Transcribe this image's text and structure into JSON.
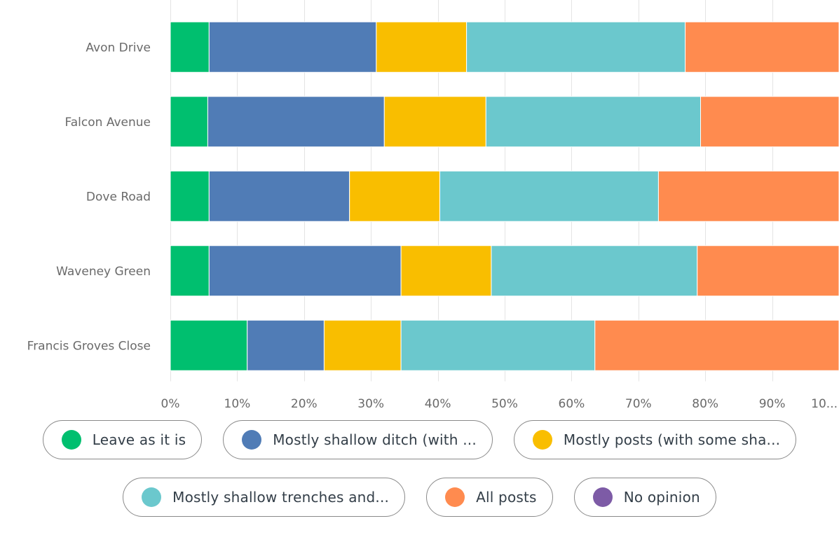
{
  "chart_data": {
    "type": "bar",
    "orientation": "horizontal",
    "stacked": true,
    "categories": [
      "Avon Drive",
      "Falcon Avenue",
      "Dove Road",
      "Waveney Green",
      "Francis Groves Close"
    ],
    "series": [
      {
        "name": "Leave as it is",
        "color": "#00bf6f",
        "values": [
          5.8,
          5.6,
          5.8,
          5.8,
          11.5
        ]
      },
      {
        "name": "Mostly shallow ditch (with ...",
        "color": "#507cb6",
        "values": [
          25.0,
          26.4,
          21.0,
          28.7,
          11.5
        ]
      },
      {
        "name": "Mostly posts (with some sha...",
        "color": "#f9be00",
        "values": [
          13.5,
          15.2,
          13.5,
          13.5,
          11.5
        ]
      },
      {
        "name": "Mostly shallow trenches and...",
        "color": "#6bc8cd",
        "values": [
          32.7,
          32.1,
          32.7,
          30.8,
          29.0
        ]
      },
      {
        "name": "All posts",
        "color": "#ff8b4f",
        "values": [
          23.0,
          20.7,
          27.0,
          21.2,
          36.5
        ]
      },
      {
        "name": "No opinion",
        "color": "#7d5ba6",
        "values": [
          0,
          0,
          0,
          0,
          0
        ]
      }
    ],
    "xlim": [
      0,
      100
    ],
    "xticks": [
      "0%",
      "10%",
      "20%",
      "30%",
      "40%",
      "50%",
      "60%",
      "70%",
      "80%",
      "90%",
      "10..."
    ],
    "grid": true,
    "legend_position": "bottom"
  },
  "legend": {
    "rows": [
      [
        0,
        1,
        2
      ],
      [
        3,
        4,
        5
      ]
    ]
  }
}
